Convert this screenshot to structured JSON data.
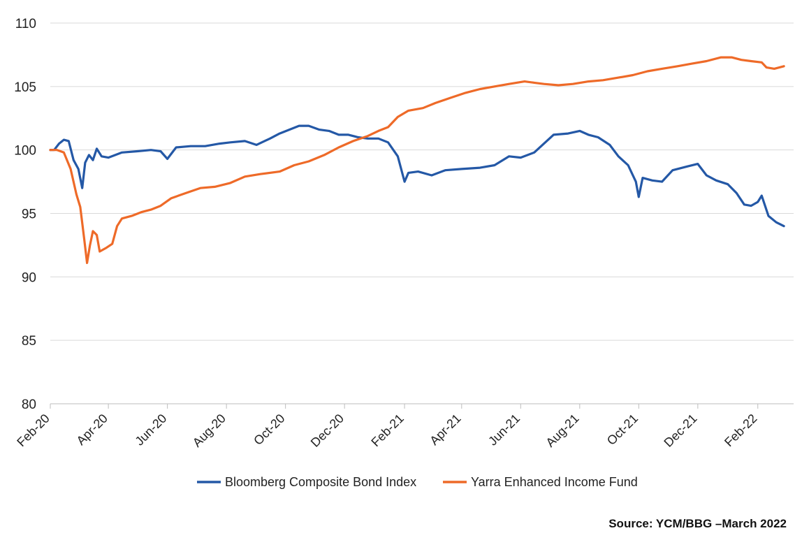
{
  "chart_data": {
    "type": "line",
    "title": "",
    "xlabel": "",
    "ylabel": "",
    "ylim": [
      80,
      110
    ],
    "yticks": [
      80,
      85,
      90,
      95,
      100,
      105,
      110
    ],
    "xlim": [
      "2020-02-01",
      "2022-03-10"
    ],
    "xticks": [
      {
        "label": "Feb-20",
        "date": "2020-02-01"
      },
      {
        "label": "Apr-20",
        "date": "2020-04-01"
      },
      {
        "label": "Jun-20",
        "date": "2020-06-01"
      },
      {
        "label": "Aug-20",
        "date": "2020-08-01"
      },
      {
        "label": "Oct-20",
        "date": "2020-10-01"
      },
      {
        "label": "Dec-20",
        "date": "2020-12-01"
      },
      {
        "label": "Feb-21",
        "date": "2021-02-01"
      },
      {
        "label": "Apr-21",
        "date": "2021-04-01"
      },
      {
        "label": "Jun-21",
        "date": "2021-06-01"
      },
      {
        "label": "Aug-21",
        "date": "2021-08-01"
      },
      {
        "label": "Oct-21",
        "date": "2021-10-01"
      },
      {
        "label": "Dec-21",
        "date": "2021-12-01"
      },
      {
        "label": "Feb-22",
        "date": "2022-02-01"
      }
    ],
    "grid": "horizontal",
    "legend": "bottom-center",
    "series": [
      {
        "name": "Bloomberg Composite Bond Index",
        "color": "#2458a6",
        "points": [
          [
            "2020-02-01",
            100.0
          ],
          [
            "2020-02-05",
            100.0
          ],
          [
            "2020-02-10",
            100.5
          ],
          [
            "2020-02-15",
            100.8
          ],
          [
            "2020-02-20",
            100.7
          ],
          [
            "2020-02-25",
            99.2
          ],
          [
            "2020-03-01",
            98.5
          ],
          [
            "2020-03-05",
            97.0
          ],
          [
            "2020-03-08",
            99.0
          ],
          [
            "2020-03-12",
            99.6
          ],
          [
            "2020-03-16",
            99.2
          ],
          [
            "2020-03-20",
            100.1
          ],
          [
            "2020-03-25",
            99.5
          ],
          [
            "2020-04-01",
            99.4
          ],
          [
            "2020-04-15",
            99.8
          ],
          [
            "2020-05-01",
            99.9
          ],
          [
            "2020-05-15",
            100.0
          ],
          [
            "2020-05-25",
            99.9
          ],
          [
            "2020-06-01",
            99.3
          ],
          [
            "2020-06-10",
            100.2
          ],
          [
            "2020-06-25",
            100.3
          ],
          [
            "2020-07-10",
            100.3
          ],
          [
            "2020-07-25",
            100.5
          ],
          [
            "2020-08-05",
            100.6
          ],
          [
            "2020-08-20",
            100.7
          ],
          [
            "2020-09-01",
            100.4
          ],
          [
            "2020-09-15",
            100.9
          ],
          [
            "2020-09-25",
            101.3
          ],
          [
            "2020-10-05",
            101.6
          ],
          [
            "2020-10-15",
            101.9
          ],
          [
            "2020-10-25",
            101.9
          ],
          [
            "2020-11-05",
            101.6
          ],
          [
            "2020-11-15",
            101.5
          ],
          [
            "2020-11-25",
            101.2
          ],
          [
            "2020-12-05",
            101.2
          ],
          [
            "2020-12-15",
            101.0
          ],
          [
            "2020-12-25",
            100.9
          ],
          [
            "2021-01-05",
            100.9
          ],
          [
            "2021-01-15",
            100.6
          ],
          [
            "2021-01-25",
            99.5
          ],
          [
            "2021-02-01",
            97.5
          ],
          [
            "2021-02-05",
            98.2
          ],
          [
            "2021-02-15",
            98.3
          ],
          [
            "2021-03-01",
            98.0
          ],
          [
            "2021-03-15",
            98.4
          ],
          [
            "2021-04-01",
            98.5
          ],
          [
            "2021-04-20",
            98.6
          ],
          [
            "2021-05-05",
            98.8
          ],
          [
            "2021-05-20",
            99.5
          ],
          [
            "2021-06-01",
            99.4
          ],
          [
            "2021-06-15",
            99.8
          ],
          [
            "2021-06-25",
            100.5
          ],
          [
            "2021-07-05",
            101.2
          ],
          [
            "2021-07-20",
            101.3
          ],
          [
            "2021-08-01",
            101.5
          ],
          [
            "2021-08-10",
            101.2
          ],
          [
            "2021-08-20",
            101.0
          ],
          [
            "2021-09-01",
            100.4
          ],
          [
            "2021-09-10",
            99.5
          ],
          [
            "2021-09-20",
            98.8
          ],
          [
            "2021-09-28",
            97.5
          ],
          [
            "2021-10-01",
            96.3
          ],
          [
            "2021-10-05",
            97.8
          ],
          [
            "2021-10-15",
            97.6
          ],
          [
            "2021-10-25",
            97.5
          ],
          [
            "2021-11-05",
            98.4
          ],
          [
            "2021-11-20",
            98.7
          ],
          [
            "2021-12-01",
            98.9
          ],
          [
            "2021-12-10",
            98.0
          ],
          [
            "2021-12-20",
            97.6
          ],
          [
            "2022-01-01",
            97.3
          ],
          [
            "2022-01-10",
            96.6
          ],
          [
            "2022-01-18",
            95.7
          ],
          [
            "2022-01-25",
            95.6
          ],
          [
            "2022-02-01",
            95.9
          ],
          [
            "2022-02-05",
            96.4
          ],
          [
            "2022-02-12",
            94.8
          ],
          [
            "2022-02-20",
            94.3
          ],
          [
            "2022-02-28",
            94.0
          ]
        ]
      },
      {
        "name": "Yarra Enhanced Income Fund",
        "color": "#ee6a28",
        "points": [
          [
            "2020-02-01",
            100.0
          ],
          [
            "2020-02-08",
            100.0
          ],
          [
            "2020-02-15",
            99.8
          ],
          [
            "2020-02-22",
            98.5
          ],
          [
            "2020-02-28",
            96.5
          ],
          [
            "2020-03-03",
            95.5
          ],
          [
            "2020-03-07",
            93.0
          ],
          [
            "2020-03-10",
            91.1
          ],
          [
            "2020-03-13",
            92.5
          ],
          [
            "2020-03-16",
            93.6
          ],
          [
            "2020-03-20",
            93.3
          ],
          [
            "2020-03-23",
            92.0
          ],
          [
            "2020-03-30",
            92.3
          ],
          [
            "2020-04-05",
            92.6
          ],
          [
            "2020-04-10",
            94.0
          ],
          [
            "2020-04-15",
            94.6
          ],
          [
            "2020-04-25",
            94.8
          ],
          [
            "2020-05-05",
            95.1
          ],
          [
            "2020-05-15",
            95.3
          ],
          [
            "2020-05-25",
            95.6
          ],
          [
            "2020-06-05",
            96.2
          ],
          [
            "2020-06-20",
            96.6
          ],
          [
            "2020-07-05",
            97.0
          ],
          [
            "2020-07-20",
            97.1
          ],
          [
            "2020-08-05",
            97.4
          ],
          [
            "2020-08-20",
            97.9
          ],
          [
            "2020-09-05",
            98.1
          ],
          [
            "2020-09-25",
            98.3
          ],
          [
            "2020-10-10",
            98.8
          ],
          [
            "2020-10-25",
            99.1
          ],
          [
            "2020-11-10",
            99.6
          ],
          [
            "2020-11-25",
            100.2
          ],
          [
            "2020-12-10",
            100.7
          ],
          [
            "2020-12-25",
            101.1
          ],
          [
            "2021-01-05",
            101.5
          ],
          [
            "2021-01-15",
            101.8
          ],
          [
            "2021-01-25",
            102.6
          ],
          [
            "2021-02-05",
            103.1
          ],
          [
            "2021-02-20",
            103.3
          ],
          [
            "2021-03-05",
            103.7
          ],
          [
            "2021-03-20",
            104.1
          ],
          [
            "2021-04-05",
            104.5
          ],
          [
            "2021-04-20",
            104.8
          ],
          [
            "2021-05-05",
            105.0
          ],
          [
            "2021-05-20",
            105.2
          ],
          [
            "2021-06-05",
            105.4
          ],
          [
            "2021-06-15",
            105.3
          ],
          [
            "2021-06-25",
            105.2
          ],
          [
            "2021-07-10",
            105.1
          ],
          [
            "2021-07-25",
            105.2
          ],
          [
            "2021-08-10",
            105.4
          ],
          [
            "2021-08-25",
            105.5
          ],
          [
            "2021-09-10",
            105.7
          ],
          [
            "2021-09-25",
            105.9
          ],
          [
            "2021-10-10",
            106.2
          ],
          [
            "2021-10-25",
            106.4
          ],
          [
            "2021-11-10",
            106.6
          ],
          [
            "2021-11-25",
            106.8
          ],
          [
            "2021-12-10",
            107.0
          ],
          [
            "2021-12-25",
            107.3
          ],
          [
            "2022-01-05",
            107.3
          ],
          [
            "2022-01-15",
            107.1
          ],
          [
            "2022-01-25",
            107.0
          ],
          [
            "2022-02-05",
            106.9
          ],
          [
            "2022-02-10",
            106.5
          ],
          [
            "2022-02-18",
            106.4
          ],
          [
            "2022-02-28",
            106.6
          ]
        ]
      }
    ]
  },
  "source_text": "Source: YCM/BBG –March 2022"
}
